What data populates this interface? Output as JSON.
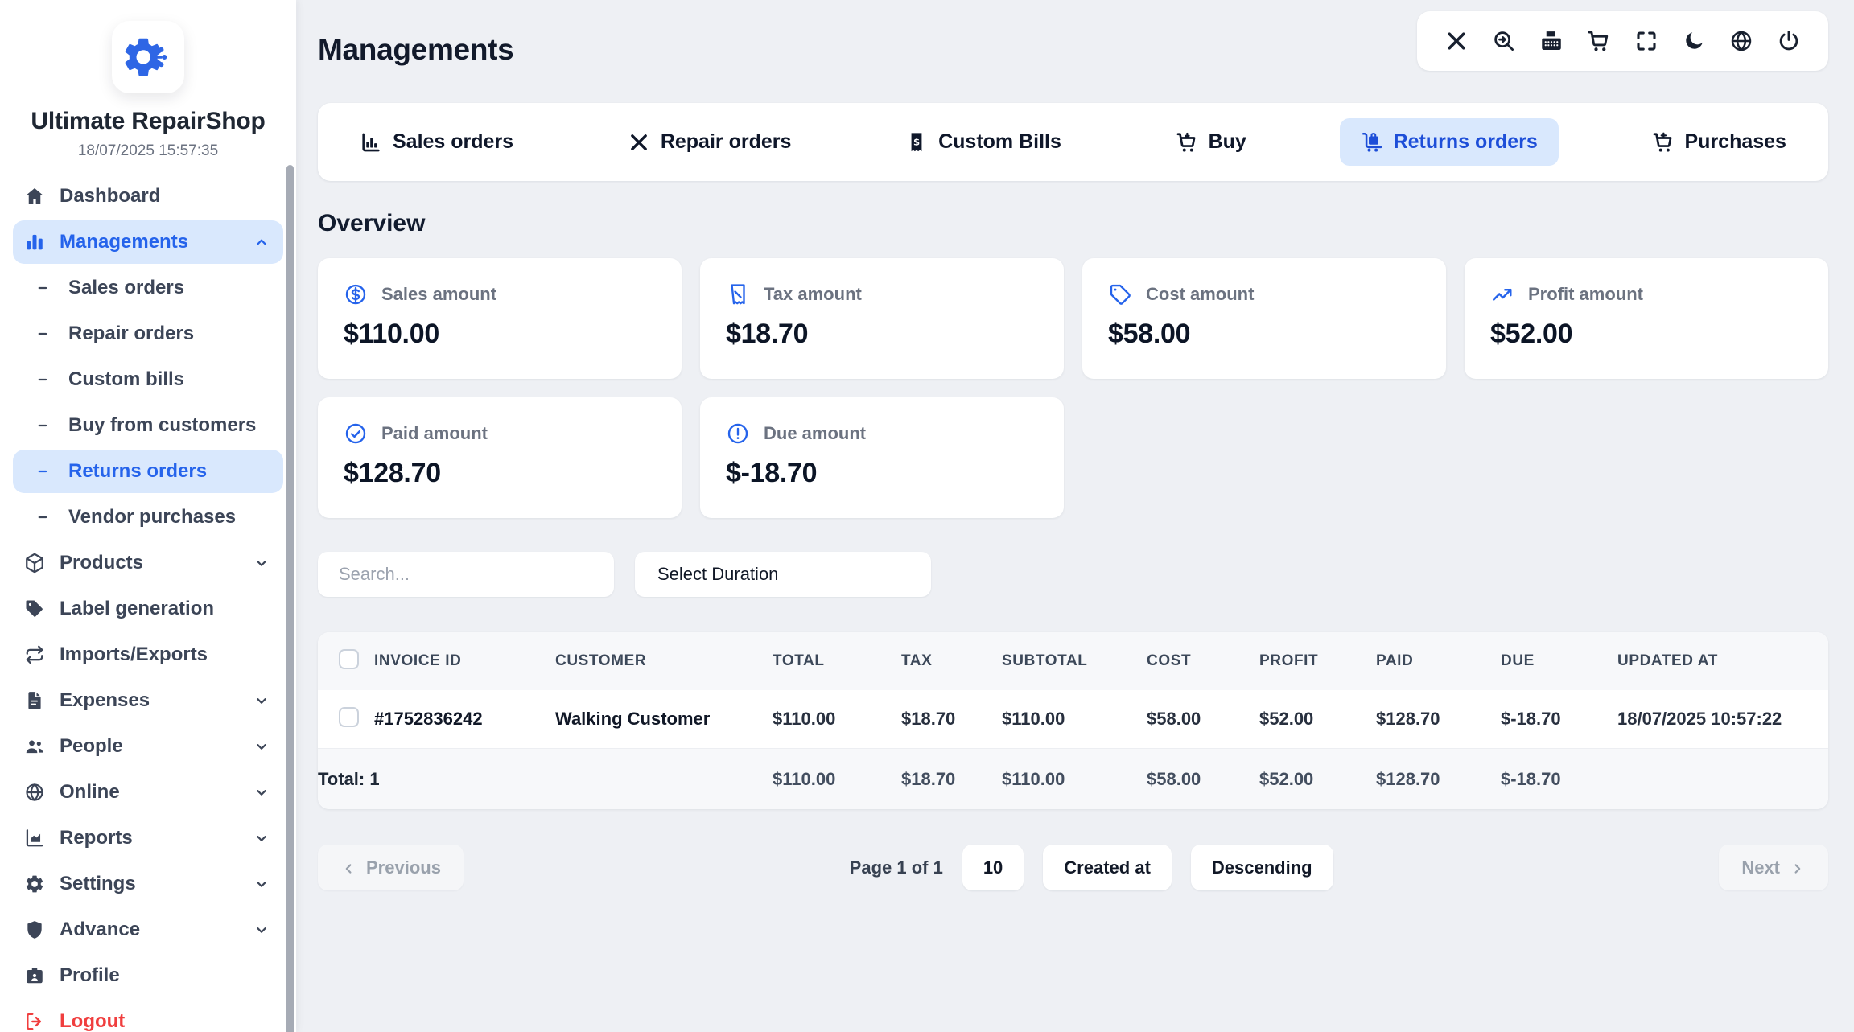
{
  "app": {
    "name": "Ultimate RepairShop",
    "datetime": "18/07/2025 15:57:35"
  },
  "page": {
    "title": "Managements",
    "section_title": "Overview"
  },
  "topbar": {
    "icons": [
      "tools-icon",
      "search-arrow-icon",
      "cash-register-icon",
      "cart-icon",
      "fullscreen-icon",
      "moon-icon",
      "globe-icon",
      "power-icon"
    ]
  },
  "sidebar": {
    "items": [
      {
        "label": "Dashboard",
        "icon": "home-icon"
      },
      {
        "label": "Managements",
        "icon": "chart-bars-icon",
        "active": true,
        "chevron": "up"
      },
      {
        "label": "Sales orders",
        "icon": "dash-icon",
        "child": true
      },
      {
        "label": "Repair orders",
        "icon": "dash-icon",
        "child": true
      },
      {
        "label": "Custom bills",
        "icon": "dash-icon",
        "child": true
      },
      {
        "label": "Buy from customers",
        "icon": "dash-icon",
        "child": true
      },
      {
        "label": "Returns orders",
        "icon": "dash-icon",
        "child": true,
        "active": true
      },
      {
        "label": "Vendor purchases",
        "icon": "dash-icon",
        "child": true
      },
      {
        "label": "Products",
        "icon": "cube-icon",
        "chevron": "down"
      },
      {
        "label": "Label generation",
        "icon": "tags-icon"
      },
      {
        "label": "Imports/Exports",
        "icon": "transfer-icon"
      },
      {
        "label": "Expenses",
        "icon": "document-icon",
        "chevron": "down"
      },
      {
        "label": "People",
        "icon": "people-icon",
        "chevron": "down"
      },
      {
        "label": "Online",
        "icon": "globe-icon",
        "chevron": "down"
      },
      {
        "label": "Reports",
        "icon": "report-icon",
        "chevron": "down"
      },
      {
        "label": "Settings",
        "icon": "settings-icon",
        "chevron": "down"
      },
      {
        "label": "Advance",
        "icon": "shield-icon",
        "chevron": "down"
      },
      {
        "label": "Profile",
        "icon": "idcard-icon"
      },
      {
        "label": "Logout",
        "icon": "logout-icon",
        "danger": true
      }
    ]
  },
  "tabs": [
    {
      "label": "Sales orders",
      "icon": "sales-chart-icon"
    },
    {
      "label": "Repair orders",
      "icon": "repair-tools-icon"
    },
    {
      "label": "Custom Bills",
      "icon": "bill-icon"
    },
    {
      "label": "Buy",
      "icon": "cart-down-icon"
    },
    {
      "label": "Returns orders",
      "icon": "dolly-icon",
      "active": true
    },
    {
      "label": "Purchases",
      "icon": "cart-plus-icon"
    }
  ],
  "stats": [
    {
      "label": "Sales amount",
      "value": "$110.00",
      "icon": "circle-dollar-icon"
    },
    {
      "label": "Tax amount",
      "value": "$18.70",
      "icon": "receipt-icon"
    },
    {
      "label": "Cost amount",
      "value": "$58.00",
      "icon": "tag-icon"
    },
    {
      "label": "Profit amount",
      "value": "$52.00",
      "icon": "trend-up-icon"
    },
    {
      "label": "Paid amount",
      "value": "$128.70",
      "icon": "check-circle-icon"
    },
    {
      "label": "Due amount",
      "value": "$-18.70",
      "icon": "alert-circle-icon"
    }
  ],
  "filters": {
    "search_placeholder": "Search...",
    "duration_label": "Select Duration"
  },
  "table": {
    "headers": [
      "INVOICE ID",
      "CUSTOMER",
      "TOTAL",
      "TAX",
      "SUBTOTAL",
      "COST",
      "PROFIT",
      "PAID",
      "DUE",
      "UPDATED AT"
    ],
    "rows": [
      [
        "#1752836242",
        "Walking Customer",
        "$110.00",
        "$18.70",
        "$110.00",
        "$58.00",
        "$52.00",
        "$128.70",
        "$-18.70",
        "18/07/2025 10:57:22"
      ]
    ],
    "total": {
      "label": "Total: 1",
      "values": [
        "$110.00",
        "$18.70",
        "$110.00",
        "$58.00",
        "$52.00",
        "$128.70",
        "$-18.70"
      ]
    }
  },
  "pagination": {
    "previous": "Previous",
    "page_text": "Page 1 of 1",
    "page_size": "10",
    "sort_field": "Created at",
    "sort_order": "Descending",
    "next": "Next"
  },
  "colors": {
    "accent": "#2563eb",
    "active_pill": "#d9e8fd",
    "danger": "#f03e3e",
    "background": "#eef0f4"
  }
}
